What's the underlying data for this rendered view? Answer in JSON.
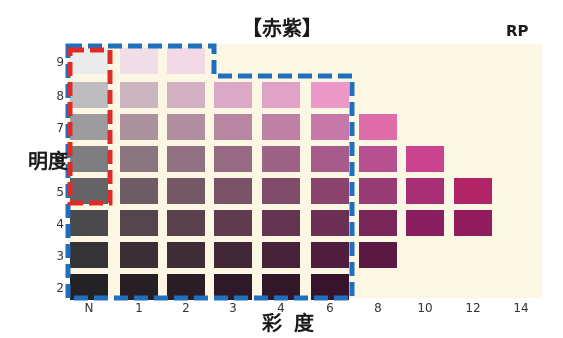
{
  "chart_data": {
    "type": "heatmap",
    "title": "【赤紫】",
    "hue_code": "RP",
    "xlabel": "彩度",
    "ylabel": "明度",
    "x_ticks": [
      "N",
      "1",
      "2",
      "3",
      "4",
      "6",
      "8",
      "10",
      "12",
      "14"
    ],
    "y_ticks": [
      "2",
      "3",
      "4",
      "5",
      "6",
      "7",
      "8",
      "9"
    ],
    "chips": [
      {
        "value": 9,
        "chroma": [
          "N",
          "1",
          "2"
        ],
        "colors": [
          "#ebebeb",
          "#f1dde6",
          "#f3d9e6"
        ]
      },
      {
        "value": 8,
        "chroma": [
          "N",
          "1",
          "2",
          "3",
          "4",
          "6"
        ],
        "colors": [
          "#bdbdbf",
          "#cdb5c0",
          "#d3b0c2",
          "#dba9c6",
          "#e1a2c8",
          "#ec98c9"
        ]
      },
      {
        "value": 7,
        "chroma": [
          "N",
          "1",
          "2",
          "3",
          "4",
          "6",
          "8"
        ],
        "colors": [
          "#9c9c9e",
          "#ab929d",
          "#b08d9f",
          "#b787a2",
          "#be80a5",
          "#c778ab",
          "#de6ca9"
        ]
      },
      {
        "value": 6,
        "chroma": [
          "N",
          "1",
          "2",
          "3",
          "4",
          "6",
          "8",
          "10"
        ],
        "colors": [
          "#7e7e80",
          "#8a757f",
          "#917081",
          "#976a83",
          "#9d6386",
          "#a75b8b",
          "#b65090",
          "#c9438f"
        ]
      },
      {
        "value": 5,
        "chroma": [
          "N",
          "1",
          "2",
          "3",
          "4",
          "6",
          "8",
          "10",
          "12"
        ],
        "colors": [
          "#646466",
          "#6e5c64",
          "#745865",
          "#7a5267",
          "#804b69",
          "#8a436d",
          "#983a73",
          "#a82f76",
          "#b22468"
        ]
      },
      {
        "value": 4,
        "chroma": [
          "N",
          "1",
          "2",
          "3",
          "4",
          "6",
          "8",
          "10",
          "12"
        ],
        "colors": [
          "#4a4a4c",
          "#55454c",
          "#5a414d",
          "#5f3b4f",
          "#643551",
          "#6c2e55",
          "#792559",
          "#881d5f",
          "#921c5e"
        ]
      },
      {
        "value": 3,
        "chroma": [
          "N",
          "1",
          "2",
          "3",
          "4",
          "6",
          "8"
        ],
        "colors": [
          "#343436",
          "#3b2f35",
          "#3f2c36",
          "#432838",
          "#47233a",
          "#4f1d3e",
          "#5b1944"
        ]
      },
      {
        "value": 2,
        "chroma": [
          "N",
          "1",
          "2",
          "3",
          "4",
          "6"
        ],
        "colors": [
          "#232325",
          "#281f24",
          "#2b1d25",
          "#2e1a27",
          "#321728",
          "#38142c"
        ]
      }
    ],
    "colors": {
      "plate": "#fbf7e3",
      "blue_outline": "#1f6fbf",
      "red_outline": "#e02a2a"
    },
    "highlights": [
      {
        "color": "blue",
        "covers": "N–6 at 2–8, N–2 at 9"
      },
      {
        "color": "red",
        "covers": "N at 5–9"
      }
    ]
  }
}
